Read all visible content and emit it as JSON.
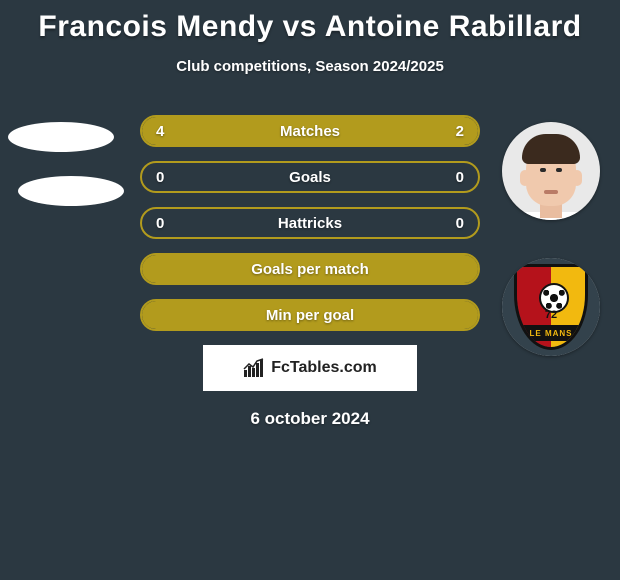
{
  "title": "Francois Mendy vs Antoine Rabillard",
  "subtitle": "Club competitions, Season 2024/2025",
  "date": "6 october 2024",
  "watermark_text": "FcTables.com",
  "colors": {
    "background": "#2b3841",
    "accent": "#b29b1d",
    "text": "#ffffff",
    "watermark_bg": "#ffffff",
    "watermark_text": "#222222"
  },
  "badge": {
    "left_color": "#b5121b",
    "right_color": "#f2b90f",
    "band_color": "#111111",
    "number": "72",
    "band_text": "LE MANS"
  },
  "bars": [
    {
      "label": "Matches",
      "left_value": "4",
      "right_value": "2",
      "left_pct": 66.7,
      "right_pct": 33.3,
      "border_color": "#b29b1d",
      "left_fill": "#b29b1d",
      "right_fill": "#b29b1d"
    },
    {
      "label": "Goals",
      "left_value": "0",
      "right_value": "0",
      "left_pct": 0,
      "right_pct": 0,
      "border_color": "#b29b1d",
      "left_fill": "#b29b1d",
      "right_fill": "#b29b1d"
    },
    {
      "label": "Hattricks",
      "left_value": "0",
      "right_value": "0",
      "left_pct": 0,
      "right_pct": 0,
      "border_color": "#b29b1d",
      "left_fill": "#b29b1d",
      "right_fill": "#b29b1d"
    },
    {
      "label": "Goals per match",
      "left_value": "",
      "right_value": "",
      "left_pct": 100,
      "right_pct": 0,
      "border_color": "#b29b1d",
      "left_fill": "#b29b1d",
      "right_fill": "#b29b1d"
    },
    {
      "label": "Min per goal",
      "left_value": "",
      "right_value": "",
      "left_pct": 100,
      "right_pct": 0,
      "border_color": "#b29b1d",
      "left_fill": "#b29b1d",
      "right_fill": "#b29b1d"
    }
  ]
}
